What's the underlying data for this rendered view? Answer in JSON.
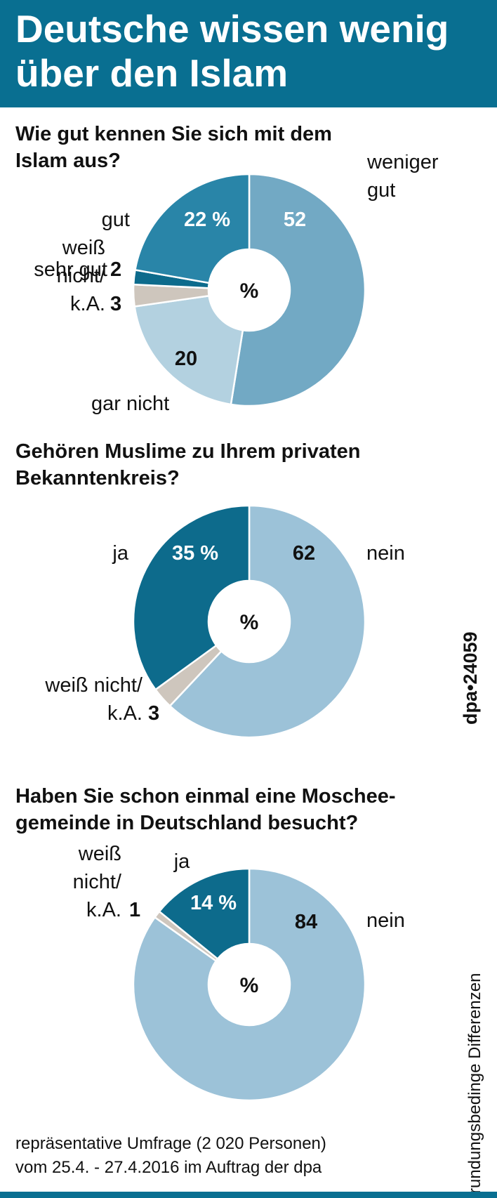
{
  "title_line1": "Deutsche wissen wenig",
  "title_line2": "über den Islam",
  "colors": {
    "header": "#096f91",
    "dark": "#0d6b8c",
    "medium": "#72a9c4",
    "light": "#b3d1e0",
    "pale": "#9cc2d8",
    "gray": "#cec6bd"
  },
  "code": "dpa•24059",
  "rounding_note": "rundungsbedinge Differenzen",
  "source_line1": "repräsentative Umfrage (2 020 Personen)",
  "source_line2": "vom 25.4. - 27.4.2016 im Auftrag der dpa",
  "chart_data": [
    {
      "type": "pie",
      "title_line1": "Wie gut kennen Sie sich mit dem",
      "title_line2": "Islam aus?",
      "center_label": "%",
      "slices": [
        {
          "label_lines": [
            "weniger",
            "gut"
          ],
          "value": 52,
          "value_text": "52",
          "color": "#72a9c4",
          "value_color": "#ffffff"
        },
        {
          "label_lines": [
            "gar nicht"
          ],
          "value": 20,
          "value_text": "20",
          "color": "#b3d1e0",
          "value_color": "#111111"
        },
        {
          "label_lines": [
            "weiß",
            "nicht/",
            "k.A."
          ],
          "value": 3,
          "value_text": "3",
          "color": "#cec6bd",
          "value_color": "#111111"
        },
        {
          "label_lines": [
            "sehr gut"
          ],
          "value": 2,
          "value_text": "2",
          "color": "#0d6b8c",
          "value_color": "#111111"
        },
        {
          "label_lines": [
            "gut"
          ],
          "value": 22,
          "value_text": "22 %",
          "color": "#2985a8",
          "value_color": "#ffffff"
        }
      ]
    },
    {
      "type": "pie",
      "title_line1": "Gehören Muslime zu Ihrem privaten",
      "title_line2": "Bekanntenkreis?",
      "center_label": "%",
      "slices": [
        {
          "label_lines": [
            "nein"
          ],
          "value": 62,
          "value_text": "62",
          "color": "#9cc2d8",
          "value_color": "#111111"
        },
        {
          "label_lines": [
            "weiß nicht/",
            "k.A."
          ],
          "value": 3,
          "value_text": "3",
          "color": "#cec6bd",
          "value_color": "#111111"
        },
        {
          "label_lines": [
            "ja"
          ],
          "value": 35,
          "value_text": "35 %",
          "color": "#0d6b8c",
          "value_color": "#ffffff"
        }
      ]
    },
    {
      "type": "pie",
      "title_line1": "Haben Sie schon einmal eine Moschee-",
      "title_line2": "gemeinde in Deutschland besucht?",
      "center_label": "%",
      "slices": [
        {
          "label_lines": [
            "nein"
          ],
          "value": 84,
          "value_text": "84",
          "color": "#9cc2d8",
          "value_color": "#111111"
        },
        {
          "label_lines": [
            "weiß",
            "nicht/",
            "k.A."
          ],
          "value": 1,
          "value_text": "1",
          "color": "#cec6bd",
          "value_color": "#111111"
        },
        {
          "label_lines": [
            "ja"
          ],
          "value": 14,
          "value_text": "14 %",
          "color": "#0d6b8c",
          "value_color": "#ffffff"
        }
      ]
    }
  ]
}
